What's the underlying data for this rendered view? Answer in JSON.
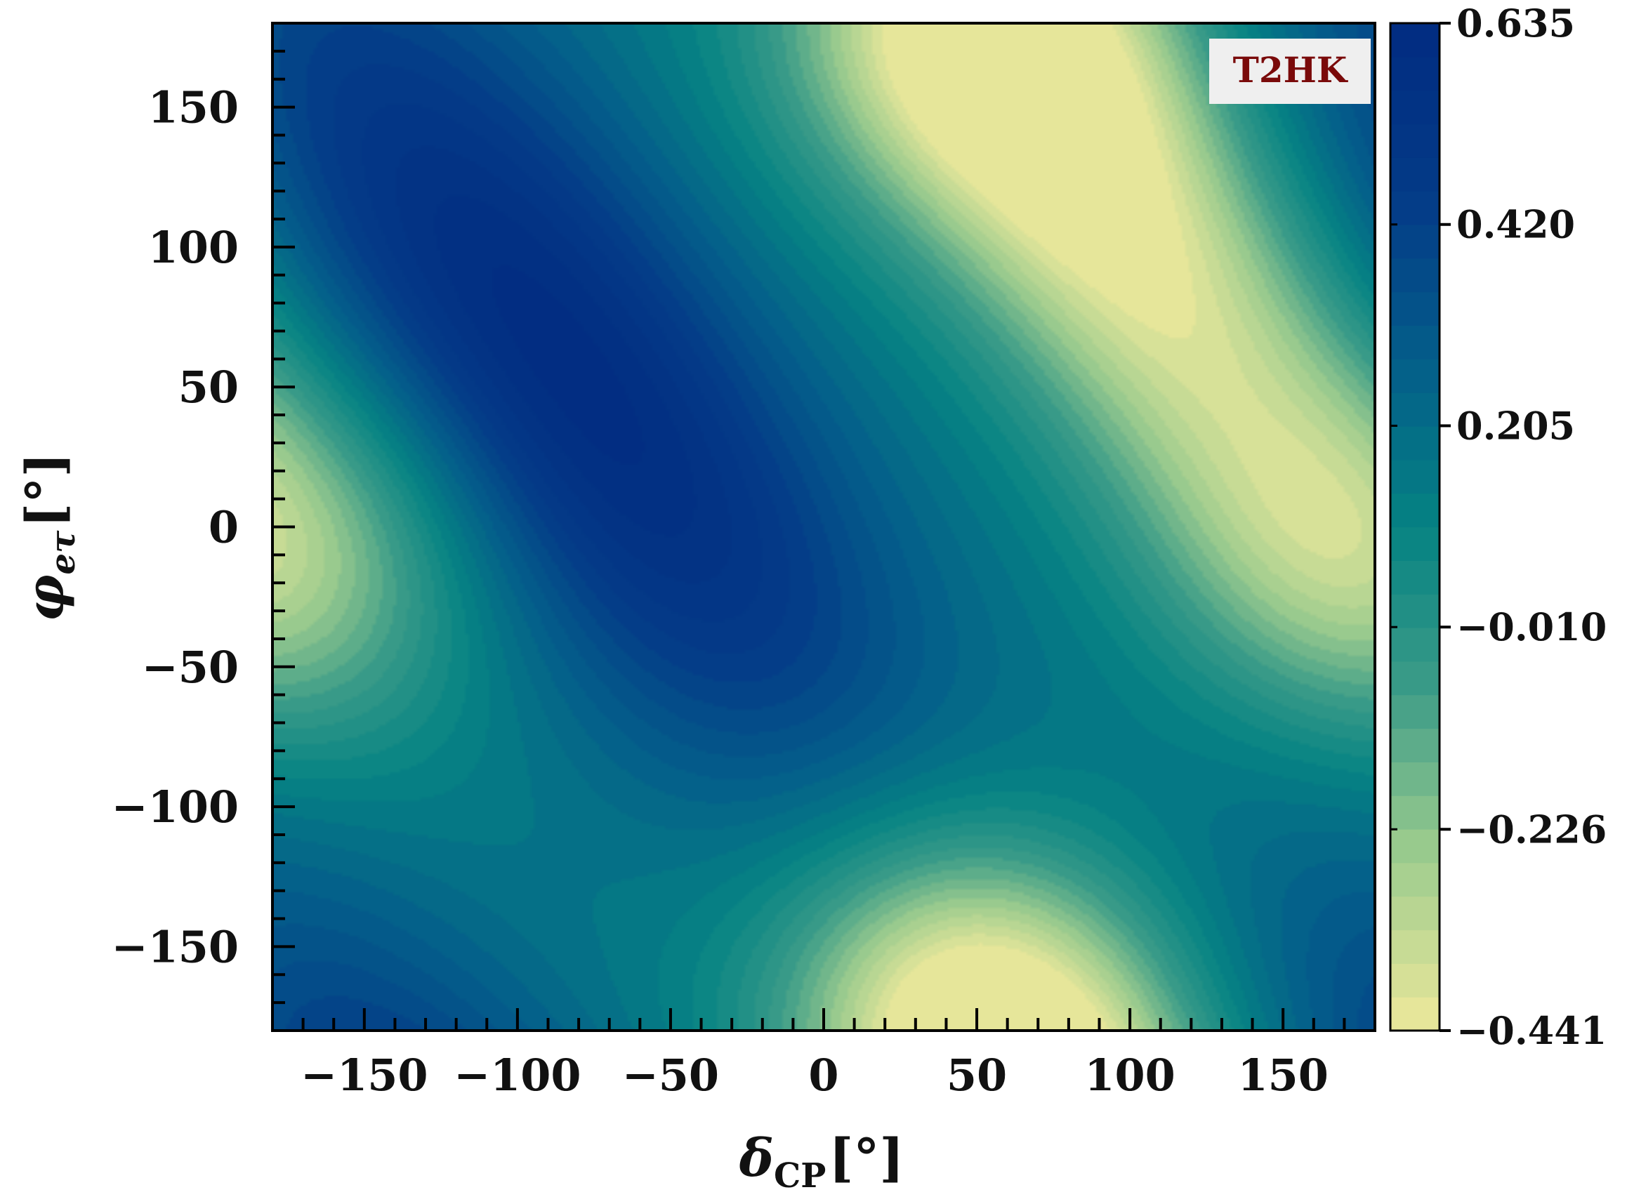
{
  "chart_data": {
    "type": "heatmap",
    "title": "",
    "xlabel": "δ_CP [°]",
    "ylabel": "φ_eτ [°]",
    "xlabel_main": "δ",
    "xlabel_sub": "CP",
    "xlabel_unit": "[°]",
    "ylabel_main": "φ",
    "ylabel_sub": "eτ",
    "ylabel_unit": "[°]",
    "xlim": [
      -180,
      180
    ],
    "ylim": [
      -180,
      180
    ],
    "x_ticks": [
      -150,
      -100,
      -50,
      0,
      50,
      100,
      150
    ],
    "y_ticks": [
      -150,
      -100,
      -50,
      0,
      50,
      100,
      150
    ],
    "x_tick_labels": [
      "−150",
      "−100",
      "−50",
      "0",
      "50",
      "100",
      "150"
    ],
    "y_tick_labels": [
      "−150",
      "−100",
      "−50",
      "0",
      "50",
      "100",
      "150"
    ],
    "colorbar": {
      "min": -0.441,
      "max": 0.635,
      "ticks": [
        0.635,
        0.42,
        0.205,
        -0.01,
        -0.226,
        -0.441
      ],
      "tick_labels": [
        "0.635",
        "0.420",
        "0.205",
        "−0.010",
        "−0.226",
        "−0.441"
      ],
      "colormap": [
        "#e6e69a",
        "#9ccc8e",
        "#3c9c88",
        "#068383",
        "#045f8a",
        "#043c88",
        "#022d82"
      ],
      "levels": 30
    },
    "features": [
      {
        "kind": "maximum",
        "x": -85,
        "y": 55,
        "value": 0.635
      },
      {
        "kind": "minimum",
        "x": 95,
        "y": 110,
        "value": -0.441
      },
      {
        "kind": "local-minimum",
        "x": 50,
        "y": -180,
        "value": -0.3
      },
      {
        "kind": "local-minimum",
        "x": -180,
        "y": -10,
        "value": -0.2
      }
    ],
    "annotation": "T2HK",
    "grid": false,
    "legend": "none"
  }
}
